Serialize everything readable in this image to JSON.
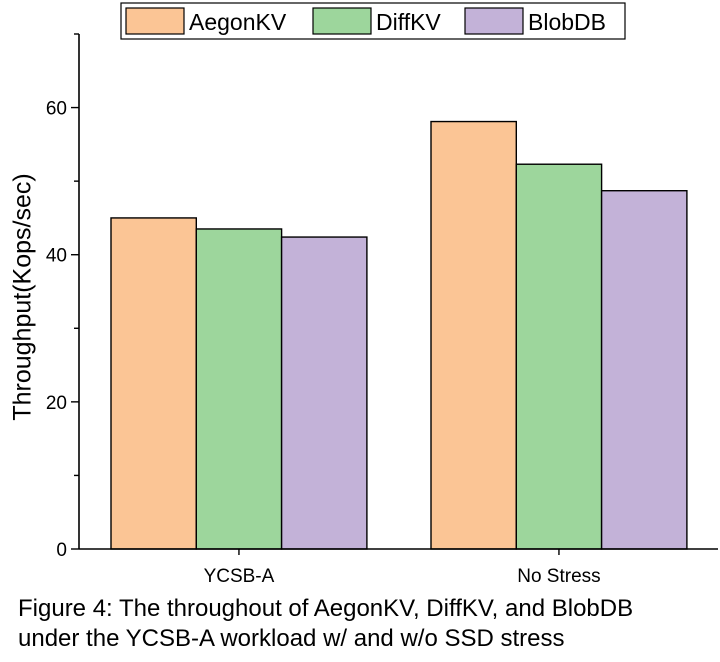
{
  "chart_data": {
    "type": "bar",
    "categories": [
      "YCSB-A",
      "No Stress"
    ],
    "series": [
      {
        "name": "AegonKV",
        "values": [
          45.0,
          58.1
        ],
        "color": "#fbc595"
      },
      {
        "name": "DiffKV",
        "values": [
          43.5,
          52.3
        ],
        "color": "#9dd69c"
      },
      {
        "name": "BlobDB",
        "values": [
          42.4,
          48.7
        ],
        "color": "#c3b2d8"
      }
    ],
    "ylabel": "Throughput(Kops/sec)",
    "xlabel": "",
    "ylim": [
      0,
      70
    ],
    "yticks": [
      "0",
      "20",
      "40",
      "60"
    ],
    "grid": false,
    "legend_position": "top"
  },
  "caption": {
    "line1": "Figure 4: The throughout of AegonKV, DiffKV, and BlobDB",
    "line2": "under the YCSB-A workload w/ and w/o SSD stress"
  }
}
